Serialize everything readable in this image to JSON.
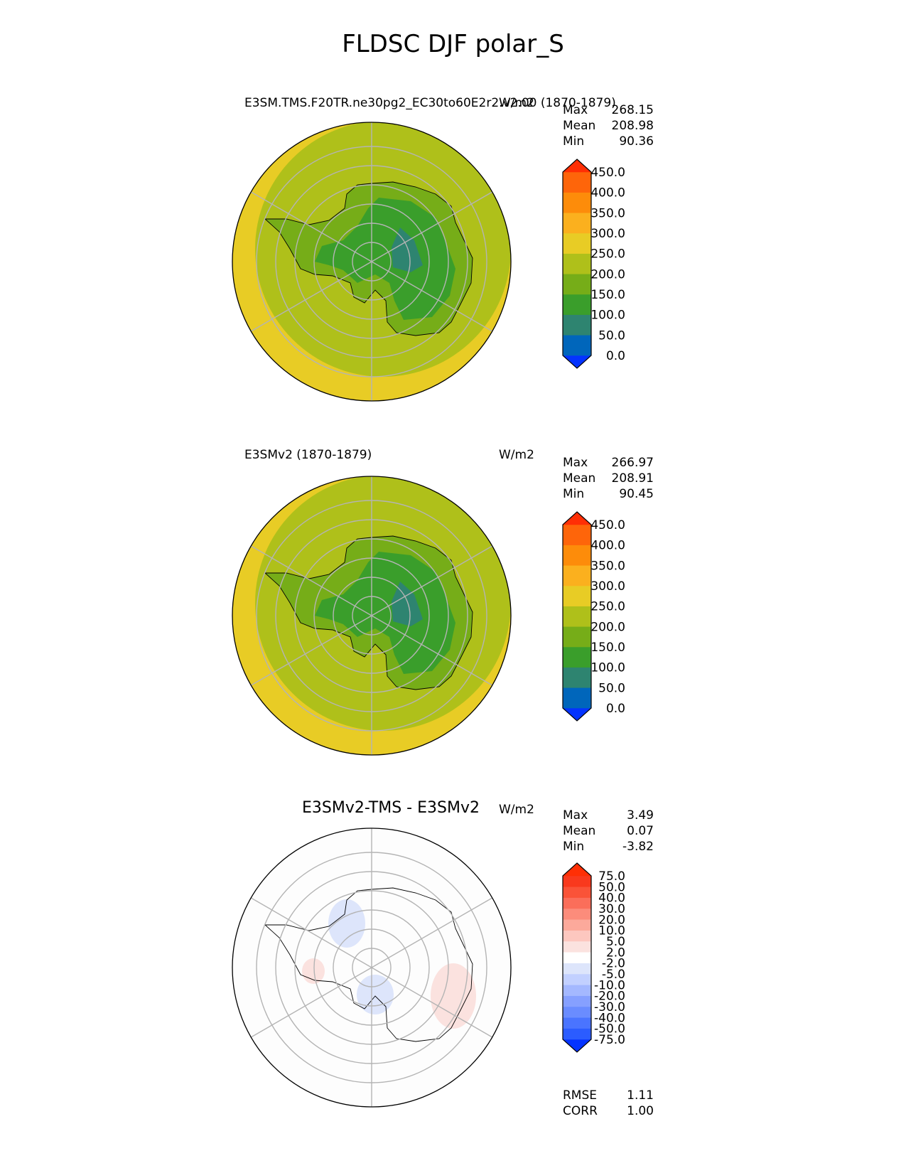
{
  "title": "FLDSC DJF polar_S",
  "panels": [
    {
      "id": "test",
      "title_left": "E3SM.TMS.F20TR.ne30pg2_EC30to60E2r2.v2.00 (1870-1879)",
      "title_center": "",
      "units": "W/m2",
      "stats": [
        {
          "label": "Max",
          "value": "268.15"
        },
        {
          "label": "Mean",
          "value": "208.98"
        },
        {
          "label": "Min",
          "value": "90.36"
        }
      ],
      "colorbar": {
        "ticks": [
          "450.0",
          "400.0",
          "350.0",
          "300.0",
          "250.0",
          "200.0",
          "150.0",
          "100.0",
          "50.0",
          "0.0"
        ],
        "colors": [
          "#0433ff",
          "#0066bb",
          "#2e8470",
          "#3a9e2b",
          "#76ad18",
          "#afc01a",
          "#e8cc25",
          "#fbb01e",
          "#fd8c0a",
          "#fe650a",
          "#ff2f05"
        ]
      }
    },
    {
      "id": "reference",
      "title_left": "E3SMv2 (1870-1879)",
      "title_center": "",
      "units": "W/m2",
      "stats": [
        {
          "label": "Max",
          "value": "266.97"
        },
        {
          "label": "Mean",
          "value": "208.91"
        },
        {
          "label": "Min",
          "value": "90.45"
        }
      ],
      "colorbar": {
        "ticks": [
          "450.0",
          "400.0",
          "350.0",
          "300.0",
          "250.0",
          "200.0",
          "150.0",
          "100.0",
          "50.0",
          "0.0"
        ],
        "colors": [
          "#0433ff",
          "#0066bb",
          "#2e8470",
          "#3a9e2b",
          "#76ad18",
          "#afc01a",
          "#e8cc25",
          "#fbb01e",
          "#fd8c0a",
          "#fe650a",
          "#ff2f05"
        ]
      }
    },
    {
      "id": "difference",
      "title_left": "",
      "title_center": "E3SMv2-TMS - E3SMv2",
      "units": "W/m2",
      "stats": [
        {
          "label": "Max",
          "value": "3.49"
        },
        {
          "label": "Mean",
          "value": "0.07"
        },
        {
          "label": "Min",
          "value": "-3.82"
        }
      ],
      "colorbar": {
        "ticks": [
          "75.0",
          "50.0",
          "40.0",
          "30.0",
          "20.0",
          "10.0",
          "5.0",
          "2.0",
          "-2.0",
          "-5.0",
          "-10.0",
          "-20.0",
          "-30.0",
          "-40.0",
          "-50.0",
          "-75.0"
        ],
        "colors": [
          "#0433ff",
          "#2b5cff",
          "#4a74ff",
          "#6a8cff",
          "#86a0ff",
          "#a4b8ff",
          "#c2d0ff",
          "#dde5fb",
          "#ffffff",
          "#fbe2df",
          "#fdc7bf",
          "#fca99b",
          "#fc8c7b",
          "#fb6e5a",
          "#fa5338",
          "#f9391d",
          "#ff2f05"
        ]
      },
      "footer": [
        {
          "label": "RMSE",
          "value": "1.11"
        },
        {
          "label": "CORR",
          "value": "1.00"
        }
      ]
    }
  ],
  "chart_data": [
    {
      "type": "heatmap",
      "projection": "south polar stereographic",
      "title": "E3SM.TMS.F20TR.ne30pg2_EC30to60E2r2.v2.00 (1870-1879)",
      "units": "W/m2",
      "levels": [
        0,
        50,
        100,
        150,
        200,
        250,
        300,
        350,
        400,
        450
      ],
      "max": 268.15,
      "mean": 208.98,
      "min": 90.36
    },
    {
      "type": "heatmap",
      "projection": "south polar stereographic",
      "title": "E3SMv2 (1870-1879)",
      "units": "W/m2",
      "levels": [
        0,
        50,
        100,
        150,
        200,
        250,
        300,
        350,
        400,
        450
      ],
      "max": 266.97,
      "mean": 208.91,
      "min": 90.45
    },
    {
      "type": "heatmap",
      "projection": "south polar stereographic",
      "title": "E3SMv2-TMS - E3SMv2",
      "units": "W/m2",
      "levels": [
        -75,
        -50,
        -40,
        -30,
        -20,
        -10,
        -5,
        -2,
        2,
        5,
        10,
        20,
        30,
        40,
        50,
        75
      ],
      "max": 3.49,
      "mean": 0.07,
      "min": -3.82,
      "rmse": 1.11,
      "corr": 1.0
    }
  ]
}
